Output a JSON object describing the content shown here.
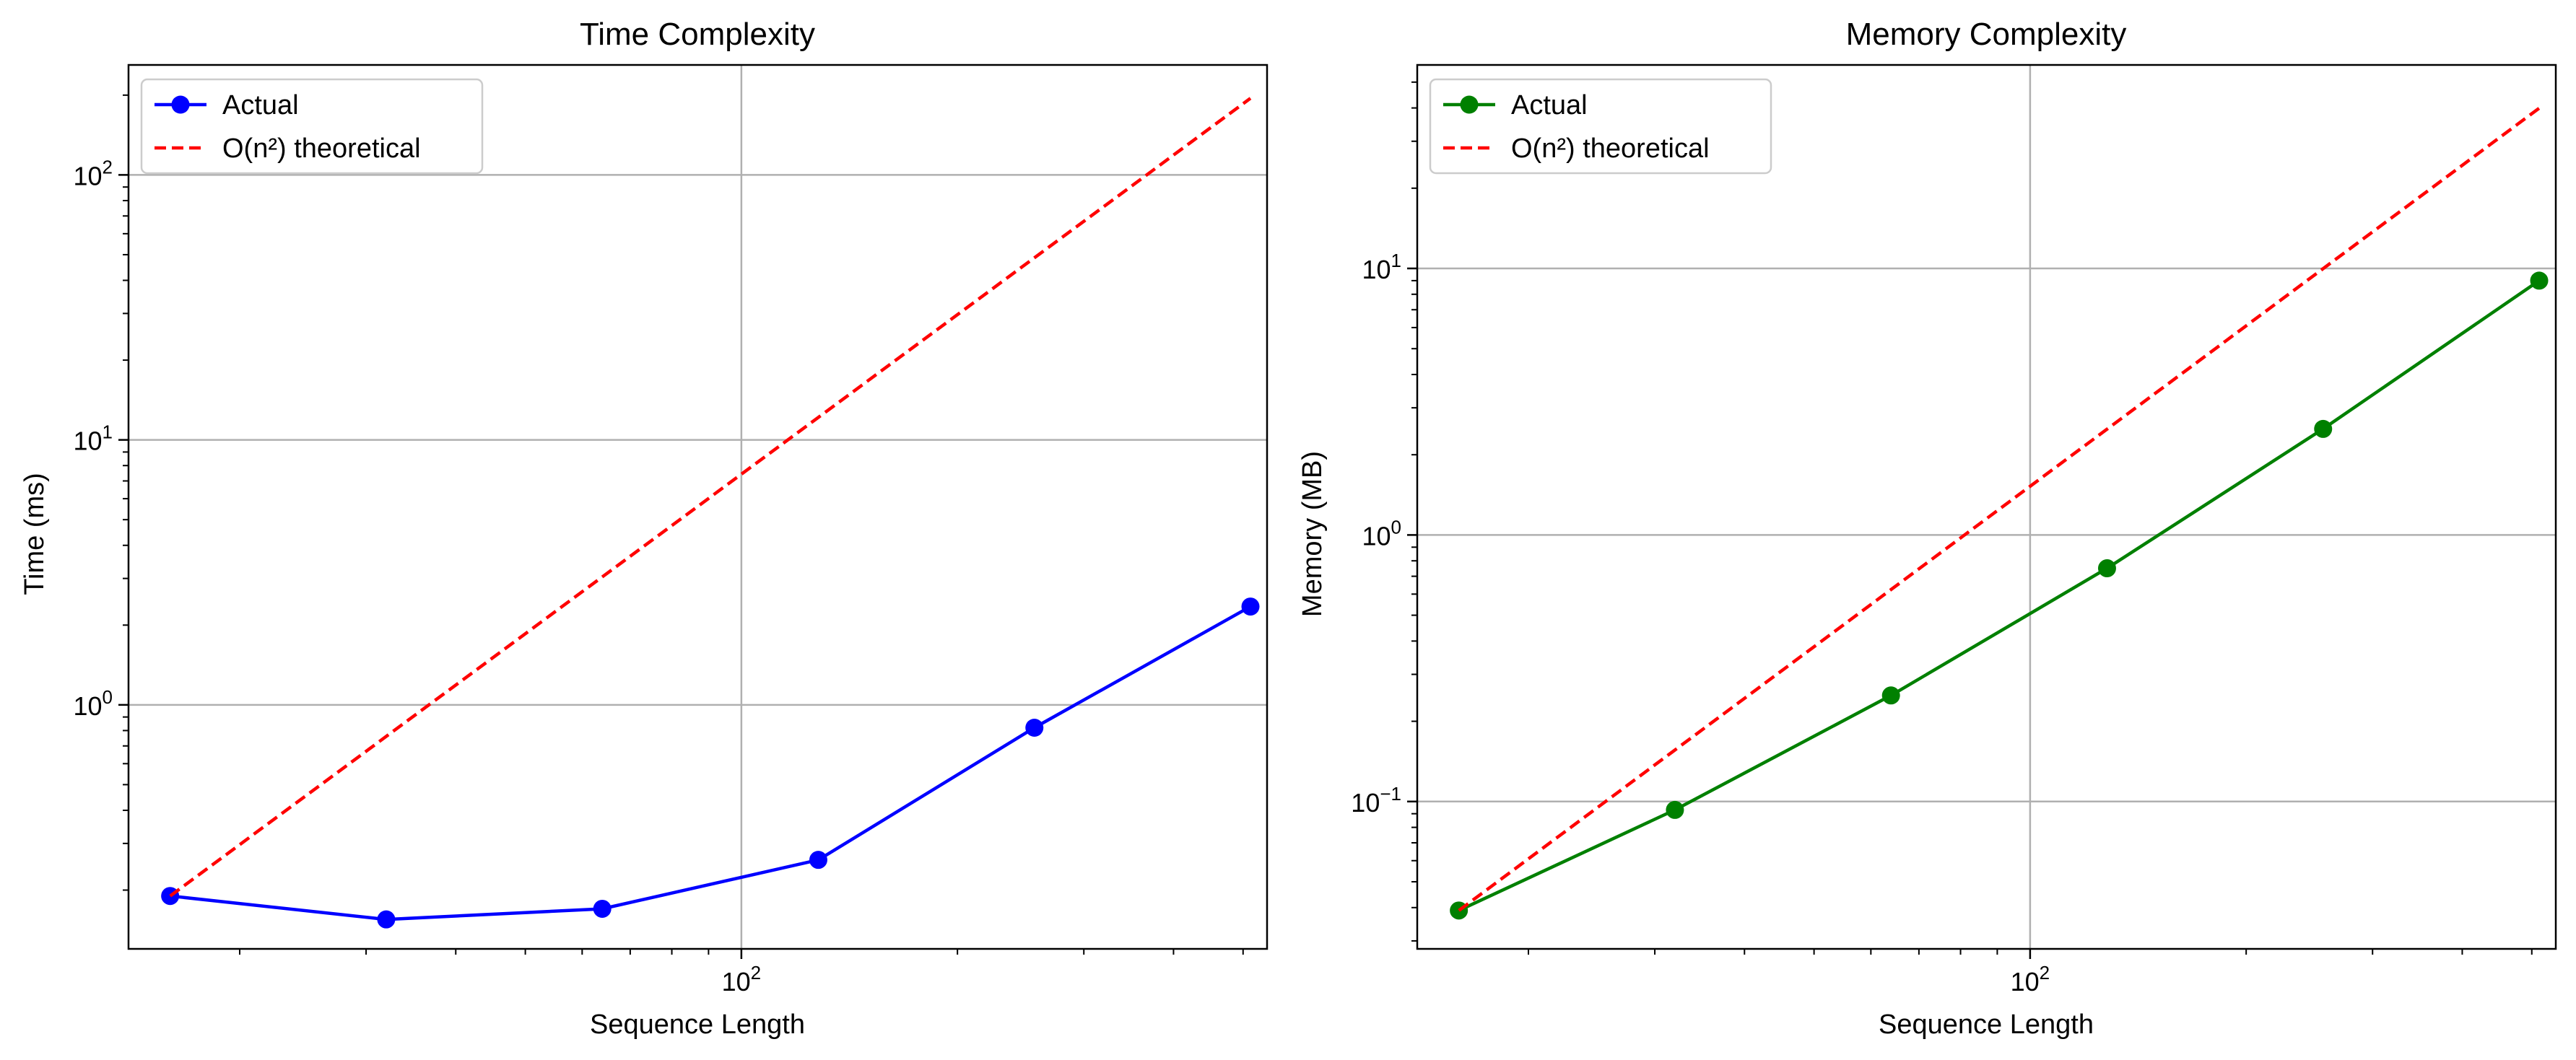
{
  "colors": {
    "background": "#ffffff",
    "grid": "#b0b0b0",
    "axes": "#000000",
    "legend_border": "#cccccc",
    "actual_time": "#0000ff",
    "actual_memory": "#008000",
    "theoretical": "#ff0000"
  },
  "chart_data": [
    {
      "type": "line",
      "title": "Time Complexity",
      "xlabel": "Sequence Length",
      "ylabel": "Time (ms)",
      "xscale": "log",
      "yscale": "log",
      "xlim": [
        14,
        540
      ],
      "ylim": [
        0.12,
        260
      ],
      "x_ticks": [
        {
          "value": 100,
          "base": "10",
          "exp": "2"
        }
      ],
      "y_ticks": [
        {
          "value": 1,
          "base": "10",
          "exp": "0"
        },
        {
          "value": 10,
          "base": "10",
          "exp": "1"
        },
        {
          "value": 100,
          "base": "10",
          "exp": "2"
        }
      ],
      "grid": true,
      "legend_position": "upper-left",
      "series": [
        {
          "name": "Actual",
          "style": "solid-marker",
          "color": "#0000ff",
          "x": [
            16,
            32,
            64,
            128,
            256,
            512
          ],
          "y": [
            0.19,
            0.155,
            0.17,
            0.26,
            0.82,
            2.35
          ]
        },
        {
          "name": "O(n²) theoretical",
          "style": "dashed",
          "color": "#ff0000",
          "x": [
            16,
            32,
            64,
            128,
            256,
            512
          ],
          "y": [
            0.19,
            0.76,
            3.04,
            12.16,
            48.64,
            194.56
          ]
        }
      ]
    },
    {
      "type": "line",
      "title": "Memory Complexity",
      "xlabel": "Sequence Length",
      "ylabel": "Memory (MB)",
      "xscale": "log",
      "yscale": "log",
      "xlim": [
        14,
        540
      ],
      "ylim": [
        0.028,
        58
      ],
      "x_ticks": [
        {
          "value": 100,
          "base": "10",
          "exp": "2"
        }
      ],
      "y_ticks": [
        {
          "value": 0.1,
          "base": "10",
          "exp": "−1"
        },
        {
          "value": 1,
          "base": "10",
          "exp": "0"
        },
        {
          "value": 10,
          "base": "10",
          "exp": "1"
        }
      ],
      "grid": true,
      "legend_position": "upper-left",
      "series": [
        {
          "name": "Actual",
          "style": "solid-marker",
          "color": "#008000",
          "x": [
            16,
            32,
            64,
            128,
            256,
            512
          ],
          "y": [
            0.039,
            0.093,
            0.25,
            0.75,
            2.5,
            9.0
          ]
        },
        {
          "name": "O(n²) theoretical",
          "style": "dashed",
          "color": "#ff0000",
          "x": [
            16,
            32,
            64,
            128,
            256,
            512
          ],
          "y": [
            0.039,
            0.156,
            0.624,
            2.496,
            9.984,
            39.936
          ]
        }
      ]
    }
  ]
}
